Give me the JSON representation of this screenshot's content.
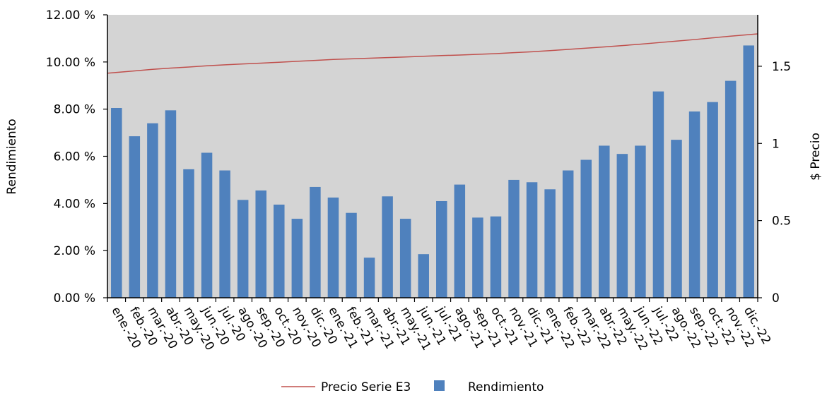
{
  "chart_data": {
    "type": "bar",
    "xlabel": "",
    "ylabel_left": "Rendimiento",
    "ylabel_right": "$ Precio",
    "ylim_left": [
      0,
      12
    ],
    "ylim_right": [
      0,
      1.8333
    ],
    "yticks_left": [
      "0.00 %",
      "2.00 %",
      "4.00 %",
      "6.00 %",
      "8.00 %",
      "10.00 %",
      "12.00 %"
    ],
    "yticks_right": [
      "0",
      "0.5",
      "1",
      "1.5"
    ],
    "categories": [
      "ene.-20",
      "feb.-20",
      "mar.-20",
      "abr.-20",
      "may.-20",
      "jun.-20",
      "jul.-20",
      "ago.-20",
      "sep.-20",
      "oct.-20",
      "nov.-20",
      "dic.-20",
      "ene.-21",
      "feb.-21",
      "mar.-21",
      "abr.-21",
      "may.-21",
      "jun.-21",
      "jul.-21",
      "ago.-21",
      "sep.-21",
      "oct.-21",
      "nov.-21",
      "dic.-21",
      "ene.-22",
      "feb.-22",
      "mar.-22",
      "abr.-22",
      "may.-22",
      "jun.-22",
      "jul.-22",
      "ago.-22",
      "sep.-22",
      "oct.-22",
      "nov.-22",
      "dic.-22"
    ],
    "series": [
      {
        "name": "Rendimiento",
        "type": "bar",
        "axis": "left",
        "color": "#4f81bd",
        "values": [
          8.05,
          6.85,
          7.4,
          7.95,
          5.45,
          6.15,
          5.4,
          4.15,
          4.55,
          3.95,
          3.35,
          4.7,
          4.25,
          3.6,
          1.7,
          4.3,
          3.35,
          1.85,
          4.1,
          4.8,
          3.4,
          3.45,
          5.0,
          4.9,
          4.6,
          5.4,
          5.85,
          6.45,
          6.1,
          6.45,
          8.75,
          6.7,
          7.9,
          8.3,
          9.2,
          10.7
        ]
      },
      {
        "name": "Precio Serie E3",
        "type": "line",
        "axis": "right",
        "color": "#c0504d",
        "values": [
          1.455,
          1.47,
          1.48,
          1.488,
          1.495,
          1.503,
          1.509,
          1.515,
          1.52,
          1.526,
          1.532,
          1.538,
          1.544,
          1.548,
          1.552,
          1.556,
          1.56,
          1.565,
          1.569,
          1.573,
          1.577,
          1.582,
          1.588,
          1.594,
          1.601,
          1.609,
          1.617,
          1.625,
          1.634,
          1.643,
          1.653,
          1.663,
          1.673,
          1.684,
          1.695,
          1.71
        ]
      }
    ],
    "legend": {
      "position": "bottom",
      "items": [
        {
          "label": "Precio Serie E3",
          "kind": "line",
          "color": "#c0504d"
        },
        {
          "label": "Rendimiento",
          "kind": "box",
          "color": "#4f81bd"
        }
      ]
    },
    "plot_background": "#d4d4d4",
    "grid": false
  }
}
